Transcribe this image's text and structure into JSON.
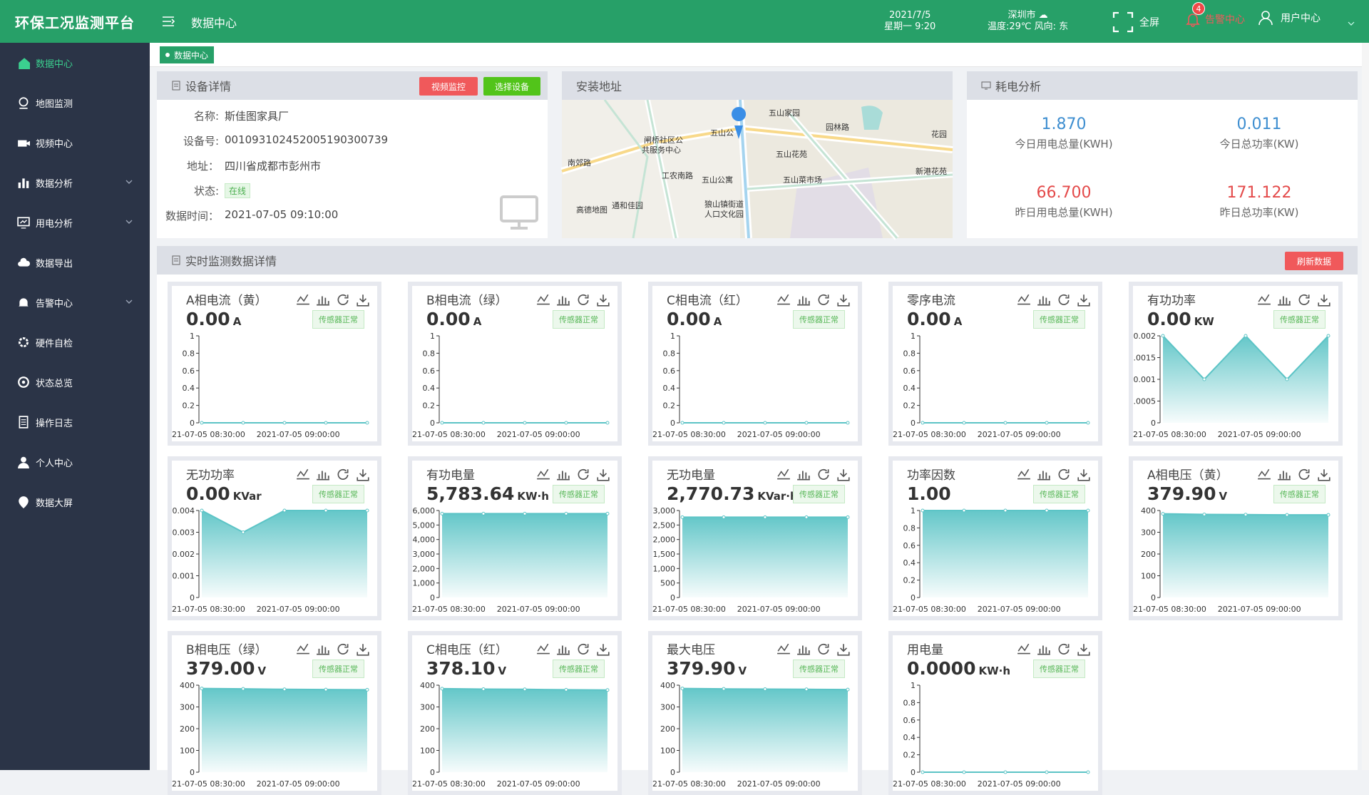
{
  "app": {
    "title": "环保工况监测平台"
  },
  "sidebar": {
    "items": [
      {
        "label": "数据中心",
        "icon": "home-icon",
        "active": true,
        "arrow": false
      },
      {
        "label": "地图监测",
        "icon": "map-pin-icon",
        "active": false,
        "arrow": false
      },
      {
        "label": "视频中心",
        "icon": "video-icon",
        "active": false,
        "arrow": false
      },
      {
        "label": "数据分析",
        "icon": "bar-chart-icon",
        "active": false,
        "arrow": true
      },
      {
        "label": "用电分析",
        "icon": "monitor-chart-icon",
        "active": false,
        "arrow": true
      },
      {
        "label": "数据导出",
        "icon": "cloud-icon",
        "active": false,
        "arrow": false
      },
      {
        "label": "告警中心",
        "icon": "bell-icon",
        "active": false,
        "arrow": true
      },
      {
        "label": "硬件自检",
        "icon": "gear-icon",
        "active": false,
        "arrow": false
      },
      {
        "label": "状态总览",
        "icon": "target-icon",
        "active": false,
        "arrow": false
      },
      {
        "label": "操作日志",
        "icon": "log-icon",
        "active": false,
        "arrow": false
      },
      {
        "label": "个人中心",
        "icon": "person-icon",
        "active": false,
        "arrow": false
      },
      {
        "label": "数据大屏",
        "icon": "dashboard-icon",
        "active": false,
        "arrow": false
      }
    ]
  },
  "header": {
    "page_name": "数据中心",
    "date": "2021/7/5",
    "weekday_time": "星期一 9:20",
    "city": "深圳市",
    "weather": "温度:29℃ 风向: 东",
    "fullscreen": "全屏",
    "alarm": "告警中心",
    "alarm_count": "4",
    "user": "用户中心"
  },
  "tagbar": {
    "tag": "数据中心"
  },
  "device": {
    "title": "设备详情",
    "btn_video": "视频监控",
    "btn_select": "选择设备",
    "rows": [
      {
        "k": "名称:",
        "v": "斯佳图家具厂"
      },
      {
        "k": "设备号:",
        "v": "001093102452005190300739"
      },
      {
        "k": "地址：",
        "v": "四川省成都市彭州市"
      },
      {
        "k": "状态:",
        "v": "在线"
      },
      {
        "k": "数据时间：",
        "v": "2021-07-05 09:10:00"
      }
    ]
  },
  "address": {
    "title": "安装地址",
    "map_labels": [
      "五山家园",
      "五山公",
      "闸桥社区公",
      "共服务中心",
      "南郊路",
      "五山花苑",
      "五山公寓",
      "五山菜市场",
      "新港花苑",
      "花园",
      "园林路",
      "工农南路",
      "狼山镇街道",
      "人口文化园",
      "高德地图",
      "通和佳园"
    ]
  },
  "energy": {
    "title": "耗电分析",
    "cells": [
      {
        "value": "1.870",
        "label": "今日用电总量(KWH)",
        "color": "#3e8ed0"
      },
      {
        "value": "0.011",
        "label": "今日总功率(KW)",
        "color": "#3e8ed0"
      },
      {
        "value": "66.700",
        "label": "昨日用电总量(KWH)",
        "color": "#e44a4a"
      },
      {
        "value": "171.122",
        "label": "昨日总功率(KW)",
        "color": "#e44a4a"
      }
    ]
  },
  "realtime": {
    "title": "实时监测数据详情",
    "refresh": "刷新数据",
    "sensor_status": "传感器正常",
    "x_labels": [
      "21-07-05 08:30:00",
      "2021-07-05 09:00:00"
    ],
    "cards": [
      {
        "title": "A相电流（黄）",
        "value": "0.00",
        "unit": "A",
        "yticks": [
          "1",
          "0.8",
          "0.6",
          "0.4",
          "0.2",
          "0"
        ],
        "ymax": 1,
        "points": [
          0,
          0,
          0,
          0,
          0
        ],
        "area": false
      },
      {
        "title": "B相电流（绿）",
        "value": "0.00",
        "unit": "A",
        "yticks": [
          "1",
          "0.8",
          "0.6",
          "0.4",
          "0.2",
          "0"
        ],
        "ymax": 1,
        "points": [
          0,
          0,
          0,
          0,
          0
        ],
        "area": false
      },
      {
        "title": "C相电流（红）",
        "value": "0.00",
        "unit": "A",
        "yticks": [
          "1",
          "0.8",
          "0.6",
          "0.4",
          "0.2",
          "0"
        ],
        "ymax": 1,
        "points": [
          0,
          0,
          0,
          0,
          0
        ],
        "area": false
      },
      {
        "title": "零序电流",
        "value": "0.00",
        "unit": "A",
        "yticks": [
          "1",
          "0.8",
          "0.6",
          "0.4",
          "0.2",
          "0"
        ],
        "ymax": 1,
        "points": [
          0,
          0,
          0,
          0,
          0
        ],
        "area": false
      },
      {
        "title": "有功功率",
        "value": "0.00",
        "unit": "KW",
        "yticks": [
          "0.002",
          ".0015",
          "0.001",
          ".0005",
          "0"
        ],
        "ymax": 0.002,
        "points": [
          0.002,
          0.001,
          0.002,
          0.001,
          0.002
        ],
        "area": true
      },
      {
        "title": "无功功率",
        "value": "0.00",
        "unit": "KVar",
        "yticks": [
          "0.004",
          "0.003",
          "0.002",
          "0.001",
          "0"
        ],
        "ymax": 0.004,
        "points": [
          0.004,
          0.003,
          0.004,
          0.004,
          0.004
        ],
        "area": true
      },
      {
        "title": "有功电量",
        "value": "5,783.64",
        "unit": "KW·h",
        "yticks": [
          "6,000",
          "5,000",
          "4,000",
          "3,000",
          "2,000",
          "1,000",
          "0"
        ],
        "ymax": 6000,
        "points": [
          5783,
          5783,
          5783,
          5783,
          5783
        ],
        "area": true
      },
      {
        "title": "无功电量",
        "value": "2,770.73",
        "unit": "KVar·h",
        "yticks": [
          "3,000",
          "2,500",
          "2,000",
          "1,500",
          "1,000",
          "500",
          "0"
        ],
        "ymax": 3000,
        "points": [
          2770,
          2770,
          2770,
          2770,
          2770
        ],
        "area": true
      },
      {
        "title": "功率因数",
        "value": "1.00",
        "unit": "",
        "yticks": [
          "1",
          "0.8",
          "0.6",
          "0.4",
          "0.2",
          "0"
        ],
        "ymax": 1,
        "points": [
          1,
          1,
          1,
          1,
          1
        ],
        "area": true
      },
      {
        "title": "A相电压（黄）",
        "value": "379.90",
        "unit": "V",
        "yticks": [
          "400",
          "300",
          "200",
          "100",
          "0"
        ],
        "ymax": 400,
        "points": [
          385,
          382,
          381,
          380,
          380
        ],
        "area": true
      },
      {
        "title": "B相电压（绿）",
        "value": "379.00",
        "unit": "V",
        "yticks": [
          "400",
          "300",
          "200",
          "100",
          "0"
        ],
        "ymax": 400,
        "points": [
          385,
          383,
          381,
          380,
          379
        ],
        "area": true
      },
      {
        "title": "C相电压（红）",
        "value": "378.10",
        "unit": "V",
        "yticks": [
          "400",
          "300",
          "200",
          "100",
          "0"
        ],
        "ymax": 400,
        "points": [
          384,
          382,
          381,
          379,
          378
        ],
        "area": true
      },
      {
        "title": "最大电压",
        "value": "379.90",
        "unit": "V",
        "yticks": [
          "400",
          "300",
          "200",
          "100",
          "0"
        ],
        "ymax": 400,
        "points": [
          385,
          383,
          382,
          381,
          380
        ],
        "area": true
      },
      {
        "title": "用电量",
        "value": "0.0000",
        "unit": "KW·h",
        "yticks": [
          "1",
          "0.8",
          "0.6",
          "0.4",
          "0.2",
          "0"
        ],
        "ymax": 1,
        "points": [
          0,
          0,
          0,
          0,
          0
        ],
        "area": false
      }
    ]
  },
  "colors": {
    "brand": "#27a068",
    "sidebar": "#2b3447",
    "chart": "#5cc4c6"
  }
}
